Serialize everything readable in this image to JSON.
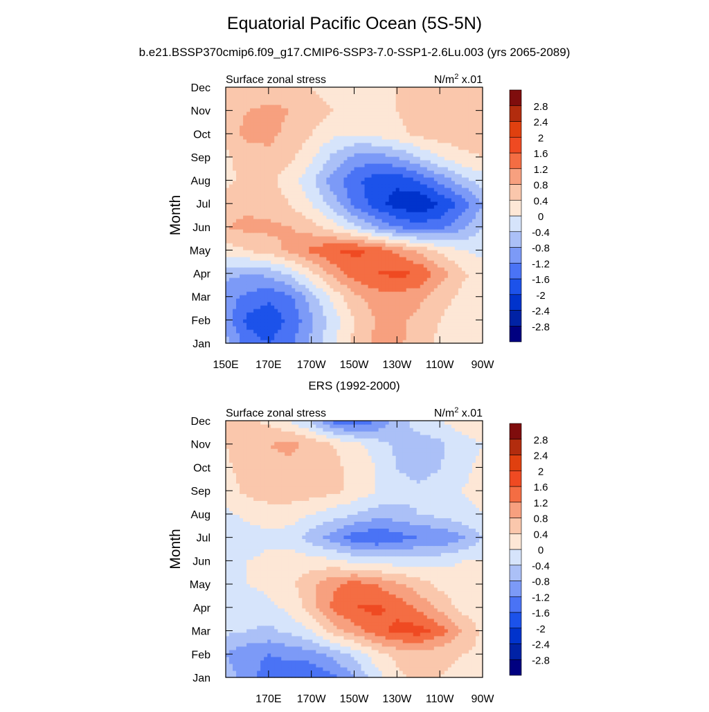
{
  "title": "Equatorial Pacific Ocean (5S-5N)",
  "subtitle": "b.e21.BSSP370cmip6.f09_g17.CMIP6-SSP3-7.0-SSP1-2.6Lu.003 (yrs 2065-2089)",
  "colors": {
    "levels": [
      "#000080",
      "#0022a5",
      "#0033cc",
      "#1c52ea",
      "#4a73f5",
      "#7c9af7",
      "#abc0f7",
      "#d6e4fb",
      "#fde7d6",
      "#fac7ac",
      "#f7a07f",
      "#f46d43",
      "#ef4a22",
      "#e0400f",
      "#b22c0e",
      "#7f0d0d"
    ],
    "level_labels": [
      "-2.8",
      "-2.4",
      "-2",
      "-1.6",
      "-1.2",
      "-0.8",
      "-0.4",
      "0",
      "0.4",
      "0.8",
      "1.2",
      "1.6",
      "2",
      "2.4",
      "2.8"
    ]
  },
  "chart_data": [
    {
      "type": "heatmap",
      "panel_title": "",
      "left_string": "Surface zonal stress",
      "right_string": "N/m",
      "right_sup": "2",
      "right_suffix": " x.01",
      "ylabel": "Month",
      "x_ticks": [
        "150E",
        "170E",
        "170W",
        "150W",
        "130W",
        "110W",
        "90W"
      ],
      "y_ticks": [
        "Jan",
        "Feb",
        "Mar",
        "Apr",
        "May",
        "Jun",
        "Jul",
        "Aug",
        "Sep",
        "Oct",
        "Nov",
        "Dec"
      ],
      "colorbar_labels": [
        "2.8",
        "2.4",
        "2",
        "1.6",
        "1.2",
        "0.8",
        "0.4",
        "0",
        "-0.4",
        "-0.8",
        "-1.2",
        "-1.6",
        "-2",
        "-2.4",
        "-2.8"
      ],
      "x_lon": [
        150,
        160,
        170,
        180,
        190,
        200,
        210,
        220,
        230,
        240,
        250,
        260,
        270
      ],
      "values": [
        [
          -0.6,
          -1.4,
          -1.6,
          -1.3,
          -0.7,
          -0.1,
          0.5,
          0.9,
          0.9,
          0.6,
          0.3,
          0.1,
          0.0
        ],
        [
          -1.0,
          -1.7,
          -1.9,
          -1.5,
          -0.9,
          -0.2,
          0.4,
          0.8,
          0.9,
          0.7,
          0.4,
          0.1,
          0.0
        ],
        [
          -1.0,
          -1.3,
          -1.5,
          -1.3,
          -0.6,
          0.1,
          0.7,
          1.0,
          1.1,
          0.9,
          0.6,
          0.3,
          0.1
        ],
        [
          -0.7,
          -0.8,
          -0.7,
          -0.3,
          0.3,
          0.9,
          1.4,
          1.6,
          1.7,
          1.6,
          1.0,
          0.5,
          0.2
        ],
        [
          0.2,
          0.4,
          0.6,
          0.9,
          1.3,
          1.6,
          1.7,
          1.5,
          1.1,
          0.7,
          0.3,
          0.0,
          -0.1
        ],
        [
          0.8,
          0.9,
          0.9,
          0.8,
          0.6,
          0.2,
          -0.3,
          -0.8,
          -1.2,
          -1.4,
          -1.3,
          -0.9,
          -0.4
        ],
        [
          0.6,
          0.7,
          0.6,
          0.4,
          0.0,
          -0.6,
          -1.3,
          -1.8,
          -2.2,
          -2.4,
          -2.0,
          -1.5,
          -0.8
        ],
        [
          0.3,
          0.5,
          0.5,
          0.2,
          -0.3,
          -1.0,
          -1.5,
          -1.8,
          -1.9,
          -1.6,
          -1.1,
          -0.6,
          -0.2
        ],
        [
          0.3,
          0.6,
          0.7,
          0.5,
          0.1,
          -0.5,
          -0.9,
          -1.0,
          -0.8,
          -0.4,
          0.0,
          0.3,
          0.4
        ],
        [
          0.6,
          0.9,
          0.9,
          0.7,
          0.4,
          0.1,
          0.0,
          0.1,
          0.3,
          0.5,
          0.6,
          0.6,
          0.6
        ],
        [
          0.7,
          0.8,
          0.9,
          0.8,
          0.6,
          0.4,
          0.3,
          0.3,
          0.4,
          0.6,
          0.7,
          0.6,
          0.5
        ],
        [
          0.4,
          0.5,
          0.6,
          0.6,
          0.4,
          0.2,
          0.1,
          0.2,
          0.4,
          0.6,
          0.7,
          0.5,
          0.4
        ]
      ]
    },
    {
      "type": "heatmap",
      "panel_title": "ERS (1992-2000)",
      "left_string": "Surface zonal stress",
      "right_string": "N/m",
      "right_sup": "2",
      "right_suffix": " x.01",
      "ylabel": "Month",
      "x_ticks": [
        "170E",
        "170W",
        "150W",
        "130W",
        "110W",
        "90W"
      ],
      "y_ticks": [
        "Jan",
        "Feb",
        "Mar",
        "Apr",
        "May",
        "Jun",
        "Jul",
        "Aug",
        "Sep",
        "Oct",
        "Nov",
        "Dec"
      ],
      "colorbar_labels": [
        "2.8",
        "2.4",
        "2",
        "1.6",
        "1.2",
        "0.8",
        "0.4",
        "0",
        "-0.4",
        "-0.8",
        "-1.2",
        "-1.6",
        "-2",
        "-2.4",
        "-2.8"
      ],
      "x_lon": [
        150,
        160,
        170,
        180,
        190,
        200,
        210,
        220,
        230,
        240,
        250,
        260,
        270
      ],
      "values": [
        [
          -0.6,
          -1.0,
          -1.4,
          -1.5,
          -1.6,
          -1.3,
          -0.8,
          -0.2,
          0.3,
          0.5,
          0.4,
          0.3,
          0.2
        ],
        [
          -0.8,
          -1.1,
          -1.2,
          -1.1,
          -1.0,
          -0.7,
          -0.3,
          0.2,
          0.5,
          0.6,
          0.5,
          0.4,
          0.3
        ],
        [
          -0.3,
          -0.4,
          -0.5,
          -0.3,
          0.0,
          0.6,
          1.0,
          1.4,
          1.7,
          1.8,
          1.4,
          0.8,
          0.3
        ],
        [
          -0.2,
          -0.2,
          -0.1,
          0.1,
          0.6,
          1.3,
          1.6,
          1.7,
          1.5,
          1.1,
          0.7,
          0.3,
          0.1
        ],
        [
          -0.1,
          0.0,
          0.1,
          0.3,
          0.7,
          1.1,
          1.4,
          1.2,
          0.9,
          0.6,
          0.3,
          0.1,
          0.0
        ],
        [
          -0.2,
          0.0,
          0.1,
          0.2,
          0.2,
          0.1,
          -0.1,
          -0.2,
          -0.2,
          -0.2,
          -0.1,
          0.0,
          0.0
        ],
        [
          -0.3,
          -0.2,
          -0.1,
          -0.2,
          -0.6,
          -1.0,
          -1.4,
          -1.6,
          -1.4,
          -1.2,
          -1.2,
          -0.9,
          -0.4
        ],
        [
          -0.1,
          0.1,
          0.2,
          0.2,
          0.0,
          -0.2,
          -0.4,
          -0.6,
          -0.6,
          -0.4,
          -0.3,
          -0.1,
          0.0
        ],
        [
          0.2,
          0.5,
          0.6,
          0.6,
          0.6,
          0.5,
          0.3,
          0.0,
          -0.2,
          -0.3,
          -0.2,
          0.0,
          0.1
        ],
        [
          0.3,
          0.6,
          0.7,
          0.7,
          0.6,
          0.5,
          0.3,
          0.0,
          -0.4,
          -0.6,
          -0.4,
          -0.1,
          0.1
        ],
        [
          0.4,
          0.7,
          0.8,
          0.9,
          0.7,
          0.4,
          0.2,
          -0.2,
          -0.5,
          -0.6,
          -0.5,
          -0.2,
          0.0
        ],
        [
          0.6,
          0.5,
          0.3,
          0.0,
          -0.5,
          -1.3,
          -1.6,
          -1.2,
          -0.6,
          -0.2,
          0.0,
          0.2,
          0.3
        ]
      ]
    }
  ]
}
